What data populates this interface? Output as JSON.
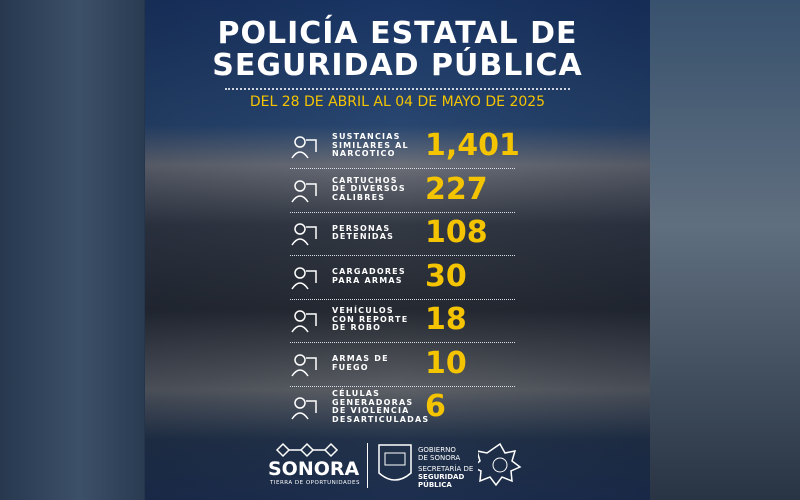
{
  "header": {
    "title_lines": [
      "POLICÍA ESTATAL DE",
      "SEGURIDAD PÚBLICA"
    ],
    "date_range": "DEL 28 DE ABRIL AL 04 DE MAYO DE 2025"
  },
  "stats": [
    {
      "label_lines": [
        "SUSTANCIAS",
        "SIMILARES AL",
        "NARCOTICO"
      ],
      "value": "1,401"
    },
    {
      "label_lines": [
        "CARTUCHOS",
        "DE DIVERSOS",
        "CALIBRES"
      ],
      "value": "227"
    },
    {
      "label_lines": [
        "PERSONAS",
        "DETENIDAS"
      ],
      "value": "108"
    },
    {
      "label_lines": [
        "CARGADORES",
        "PARA ARMAS"
      ],
      "value": "30"
    },
    {
      "label_lines": [
        "VEHÍCULOS",
        "CON REPORTE",
        "DE ROBO"
      ],
      "value": "18"
    },
    {
      "label_lines": [
        "ARMAS DE",
        "FUEGO"
      ],
      "value": "10"
    },
    {
      "label_lines": [
        "CÉLULAS",
        "GENERADORAS",
        "DE VIOLENCIA",
        "DESARTICULADAS"
      ],
      "value": "6"
    }
  ],
  "footer": {
    "brand": "SONORA",
    "slogan": "TIERRA DE OPORTUNIDADES",
    "gov_lines": [
      "GOBIERNO",
      "DE SONORA"
    ],
    "agency_lines": [
      "SECRETARÍA DE",
      "SEGURIDAD",
      "PÚBLICA"
    ]
  }
}
